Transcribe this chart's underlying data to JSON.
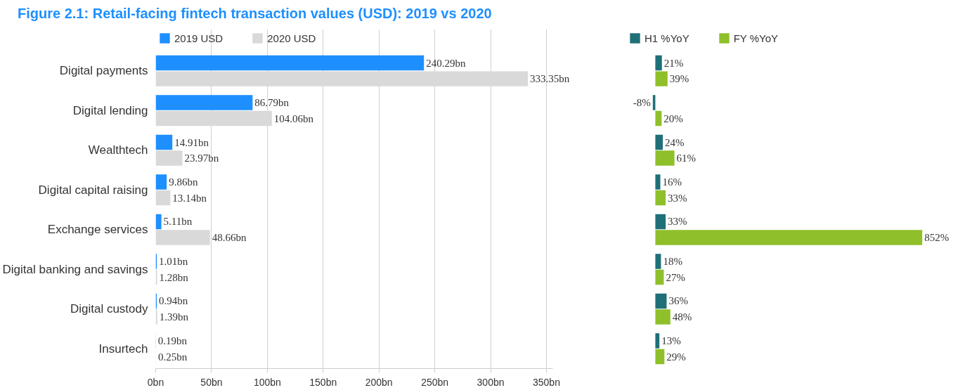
{
  "chart_data": [
    {
      "type": "bar",
      "orientation": "horizontal",
      "title": "Figure 2.1: Retail-facing fintech transaction values (USD): 2019 vs 2020",
      "categories": [
        "Digital payments",
        "Digital lending",
        "Wealthtech",
        "Digital capital raising",
        "Exchange services",
        "Digital banking and savings",
        "Digital custody",
        "Insurtech"
      ],
      "series": [
        {
          "name": "2019 USD",
          "color": "#1e8fff",
          "values": [
            240.29,
            86.79,
            14.91,
            9.86,
            5.11,
            1.01,
            0.94,
            0.19
          ],
          "value_labels": [
            "240.29bn",
            "86.79bn",
            "14.91bn",
            "9.86bn",
            "5.11bn",
            "1.01bn",
            "0.94bn",
            "0.19bn"
          ]
        },
        {
          "name": "2020 USD",
          "color": "#d9d9d9",
          "values": [
            333.35,
            104.06,
            23.97,
            13.14,
            48.66,
            1.28,
            1.39,
            0.25
          ],
          "value_labels": [
            "333.35bn",
            "104.06bn",
            "23.97bn",
            "13.14bn",
            "48.66bn",
            "1.28bn",
            "1.39bn",
            "0.25bn"
          ]
        }
      ],
      "xlim": [
        0,
        356
      ],
      "xticks": [
        {
          "value": 0,
          "label": "0bn"
        },
        {
          "value": 50,
          "label": "50bn"
        },
        {
          "value": 100,
          "label": "100bn"
        },
        {
          "value": 150,
          "label": "150bn"
        },
        {
          "value": 200,
          "label": "200bn"
        },
        {
          "value": 250,
          "label": "250bn"
        },
        {
          "value": 300,
          "label": "300bn"
        },
        {
          "value": 350,
          "label": "350bn"
        }
      ],
      "grid": "x",
      "legend": "top"
    },
    {
      "type": "bar",
      "orientation": "horizontal",
      "categories": [
        null,
        null,
        null,
        null,
        null,
        null,
        null,
        null
      ],
      "series": [
        {
          "name": "H1 %YoY",
          "color": "#1f6f78",
          "values": [
            21,
            -8,
            24,
            16,
            33,
            18,
            36,
            13
          ],
          "value_labels": [
            "21%",
            "-8%",
            "24%",
            "16%",
            "33%",
            "18%",
            "36%",
            "13%"
          ]
        },
        {
          "name": "FY %YoY",
          "color": "#8fbf2a",
          "values": [
            39,
            20,
            61,
            33,
            852,
            27,
            48,
            29
          ],
          "value_labels": [
            "39%",
            "20%",
            "61%",
            "33%",
            "852%",
            "27%",
            "48%",
            "29%"
          ]
        }
      ],
      "tick_labels": false,
      "legend": "top"
    }
  ]
}
